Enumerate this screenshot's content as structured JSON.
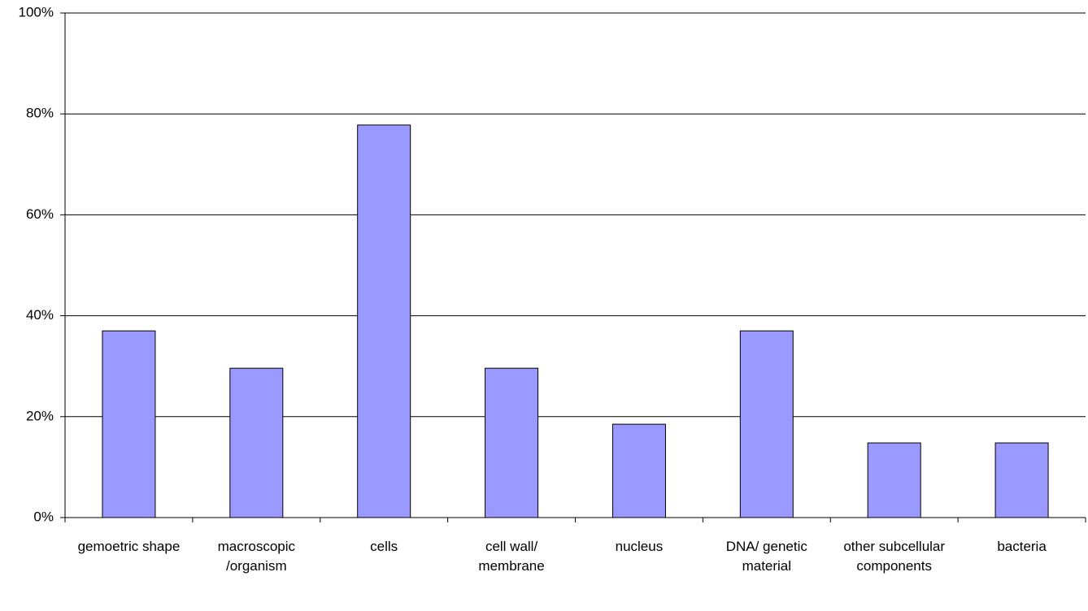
{
  "chart_data": {
    "type": "bar",
    "categories": [
      "gemoetric shape",
      "macroscopic /organism",
      "cells",
      "cell wall/ membrane",
      "nucleus",
      "DNA/ genetic material",
      "other subcellular components",
      "bacteria"
    ],
    "values": [
      37,
      29.6,
      77.8,
      29.6,
      18.5,
      37,
      14.8,
      14.8
    ],
    "color": "#9999ff",
    "ylim": [
      0,
      100
    ],
    "yticks": [
      {
        "value": 0,
        "label": "0%"
      },
      {
        "value": 20,
        "label": "20%"
      },
      {
        "value": 40,
        "label": "40%"
      },
      {
        "value": 60,
        "label": "60%"
      },
      {
        "value": 80,
        "label": "80%"
      },
      {
        "value": 100,
        "label": "100%"
      }
    ],
    "grid": true
  }
}
